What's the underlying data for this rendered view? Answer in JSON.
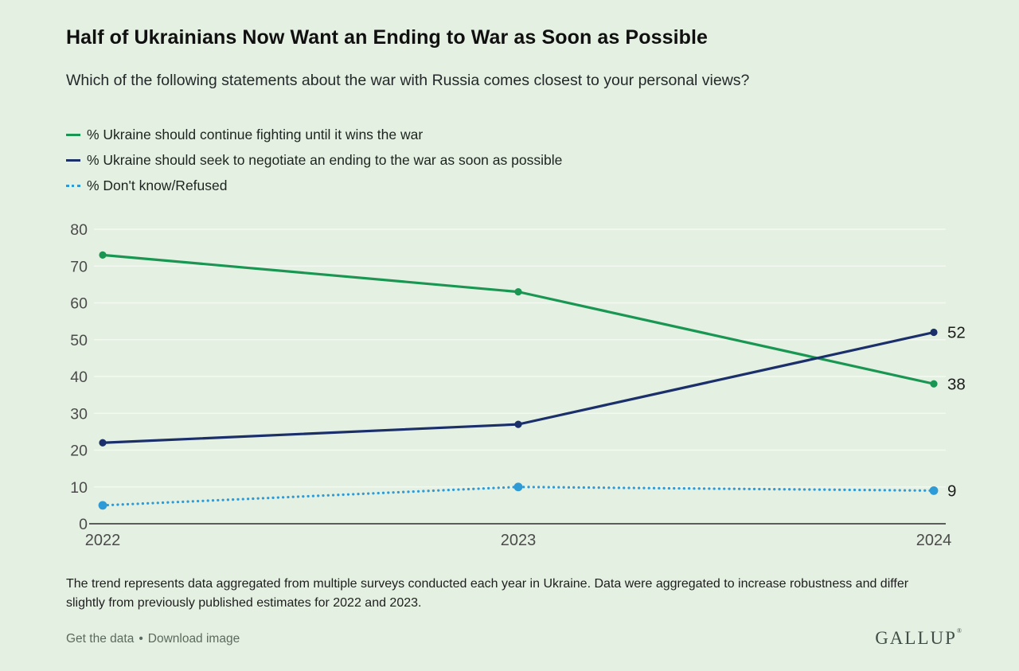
{
  "theme": {
    "background": "#e4f0e1",
    "gridline": "#f3f9f1",
    "axis_line": "#2c2c2c",
    "axis_text": "#4b4b4b",
    "value_label_text": "#1b1b1b",
    "footer_link": "#5b6a5e",
    "brand_color": "#3f4e46"
  },
  "chart_data": {
    "type": "line",
    "title": "Half of Ukrainians Now Want an Ending to War as Soon as Possible",
    "subtitle": "Which of the following statements about the war with Russia comes closest to your personal views?",
    "x": [
      2022,
      2023,
      2024
    ],
    "xticks": [
      "2022",
      "2023",
      "2024"
    ],
    "series": [
      {
        "name": "% Ukraine should continue fighting until it wins the war",
        "color": "#1a9653",
        "style": "solid",
        "values": [
          73,
          63,
          38
        ],
        "end_label": "38"
      },
      {
        "name": "% Ukraine should seek to negotiate an ending to the war as soon as possible",
        "color": "#1b2f6a",
        "style": "solid",
        "values": [
          22,
          27,
          52
        ],
        "end_label": "52"
      },
      {
        "name": "% Don't know/Refused",
        "color": "#2e9bd6",
        "style": "dotted",
        "values": [
          5,
          10,
          9
        ],
        "end_label": "9"
      }
    ],
    "xlabel": "",
    "ylabel": "",
    "ylim": [
      0,
      80
    ],
    "yticks": [
      0,
      10,
      20,
      30,
      40,
      50,
      60,
      70,
      80
    ],
    "grid": true,
    "legend_position": "top-left"
  },
  "footnote": "The trend represents data aggregated from multiple surveys conducted each year in Ukraine. Data were aggregated to increase robustness and differ slightly from previously published estimates for 2022 and 2023.",
  "footer": {
    "links": [
      {
        "label": "Get the data"
      },
      {
        "label": "Download image"
      }
    ],
    "separator": "•",
    "brand": "GALLUP",
    "brand_mark": "®"
  }
}
